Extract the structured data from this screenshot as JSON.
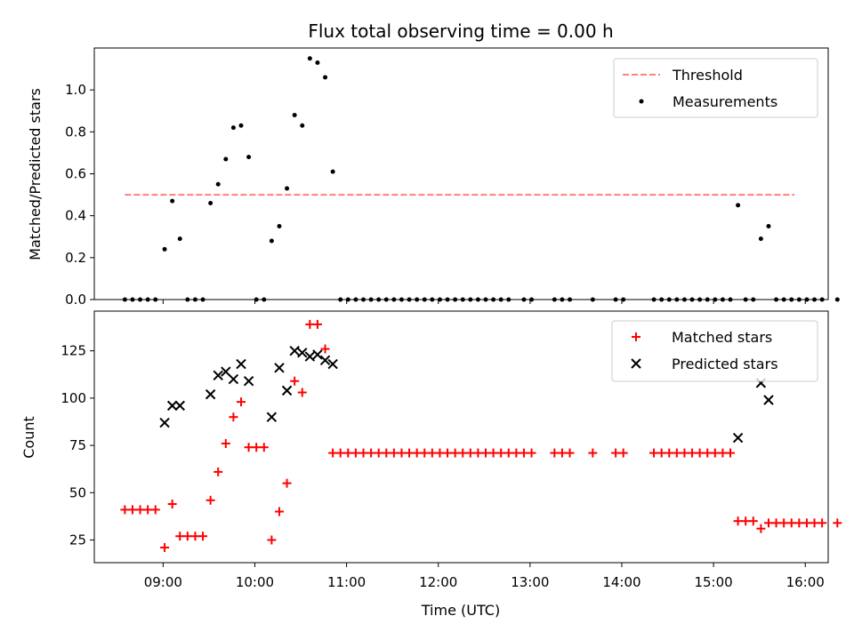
{
  "title": "Flux total observing time = 0.00 h",
  "chart_data": [
    {
      "type": "scatter",
      "ylabel": "Matched/Predicted stars",
      "xlim": [
        "08:15",
        "16:15"
      ],
      "ylim": [
        0,
        1.2
      ],
      "yticks": [
        0.0,
        0.2,
        0.4,
        0.6,
        0.8,
        1.0
      ],
      "ytick_labels": [
        "0.0",
        "0.2",
        "0.4",
        "0.6",
        "0.8",
        "1.0"
      ],
      "legend_position": "top-right",
      "threshold": {
        "name": "Threshold",
        "value": 0.5,
        "x_range": [
          "08:35",
          "15:53"
        ],
        "color": "#ff7f7f",
        "style": "dashed"
      },
      "series": [
        {
          "name": "Measurements",
          "color": "#000000",
          "marker": "dot",
          "points": [
            [
              "08:35",
              0
            ],
            [
              "08:40",
              0
            ],
            [
              "08:45",
              0
            ],
            [
              "08:50",
              0
            ],
            [
              "08:55",
              0
            ],
            [
              "09:01",
              0.24
            ],
            [
              "09:06",
              0.47
            ],
            [
              "09:11",
              0.29
            ],
            [
              "09:16",
              0
            ],
            [
              "09:21",
              0
            ],
            [
              "09:26",
              0
            ],
            [
              "09:31",
              0.46
            ],
            [
              "09:36",
              0.55
            ],
            [
              "09:41",
              0.67
            ],
            [
              "09:46",
              0.82
            ],
            [
              "09:51",
              0.83
            ],
            [
              "09:56",
              0.68
            ],
            [
              "10:01",
              0
            ],
            [
              "10:06",
              0
            ],
            [
              "10:11",
              0.28
            ],
            [
              "10:16",
              0.35
            ],
            [
              "10:21",
              0.53
            ],
            [
              "10:26",
              0.88
            ],
            [
              "10:31",
              0.83
            ],
            [
              "10:36",
              1.15
            ],
            [
              "10:41",
              1.13
            ],
            [
              "10:46",
              1.06
            ],
            [
              "10:51",
              0.61
            ],
            [
              "10:56",
              0
            ],
            [
              "11:01",
              0
            ],
            [
              "11:06",
              0
            ],
            [
              "11:11",
              0
            ],
            [
              "11:16",
              0
            ],
            [
              "11:21",
              0
            ],
            [
              "11:26",
              0
            ],
            [
              "11:31",
              0
            ],
            [
              "11:36",
              0
            ],
            [
              "11:41",
              0
            ],
            [
              "11:46",
              0
            ],
            [
              "11:51",
              0
            ],
            [
              "11:56",
              0
            ],
            [
              "12:01",
              0
            ],
            [
              "12:06",
              0
            ],
            [
              "12:11",
              0
            ],
            [
              "12:16",
              0
            ],
            [
              "12:21",
              0
            ],
            [
              "12:26",
              0
            ],
            [
              "12:31",
              0
            ],
            [
              "12:36",
              0
            ],
            [
              "12:41",
              0
            ],
            [
              "12:46",
              0
            ],
            [
              "12:56",
              0
            ],
            [
              "13:01",
              0
            ],
            [
              "13:16",
              0
            ],
            [
              "13:21",
              0
            ],
            [
              "13:26",
              0
            ],
            [
              "13:41",
              0
            ],
            [
              "13:56",
              0
            ],
            [
              "14:01",
              0
            ],
            [
              "14:21",
              0
            ],
            [
              "14:26",
              0
            ],
            [
              "14:31",
              0
            ],
            [
              "14:36",
              0
            ],
            [
              "14:41",
              0
            ],
            [
              "14:46",
              0
            ],
            [
              "14:51",
              0
            ],
            [
              "14:56",
              0
            ],
            [
              "15:01",
              0
            ],
            [
              "15:06",
              0
            ],
            [
              "15:11",
              0
            ],
            [
              "15:16",
              0.45
            ],
            [
              "15:21",
              0
            ],
            [
              "15:26",
              0
            ],
            [
              "15:31",
              0.29
            ],
            [
              "15:36",
              0.35
            ],
            [
              "15:41",
              0
            ],
            [
              "15:46",
              0
            ],
            [
              "15:51",
              0
            ],
            [
              "15:56",
              0
            ],
            [
              "16:01",
              0
            ],
            [
              "16:06",
              0
            ],
            [
              "16:11",
              0
            ],
            [
              "16:21",
              0
            ]
          ]
        }
      ]
    },
    {
      "type": "scatter",
      "xlabel": "Time (UTC)",
      "ylabel": "Count",
      "xlim": [
        "08:15",
        "16:15"
      ],
      "ylim": [
        13,
        146
      ],
      "xticks": [
        "09:00",
        "10:00",
        "11:00",
        "12:00",
        "13:00",
        "14:00",
        "15:00",
        "16:00"
      ],
      "yticks": [
        25,
        50,
        75,
        100,
        125
      ],
      "ytick_labels": [
        "25",
        "50",
        "75",
        "100",
        "125"
      ],
      "legend_position": "top-right",
      "series": [
        {
          "name": "Matched stars",
          "color": "#ff0000",
          "marker": "plus",
          "points": [
            [
              "08:35",
              41
            ],
            [
              "08:40",
              41
            ],
            [
              "08:45",
              41
            ],
            [
              "08:50",
              41
            ],
            [
              "08:55",
              41
            ],
            [
              "09:01",
              21
            ],
            [
              "09:06",
              44
            ],
            [
              "09:11",
              27
            ],
            [
              "09:16",
              27
            ],
            [
              "09:21",
              27
            ],
            [
              "09:26",
              27
            ],
            [
              "09:31",
              46
            ],
            [
              "09:36",
              61
            ],
            [
              "09:41",
              76
            ],
            [
              "09:46",
              90
            ],
            [
              "09:51",
              98
            ],
            [
              "09:56",
              74
            ],
            [
              "10:01",
              74
            ],
            [
              "10:06",
              74
            ],
            [
              "10:11",
              25
            ],
            [
              "10:16",
              40
            ],
            [
              "10:21",
              55
            ],
            [
              "10:26",
              109
            ],
            [
              "10:31",
              103
            ],
            [
              "10:36",
              139
            ],
            [
              "10:41",
              139
            ],
            [
              "10:46",
              126
            ],
            [
              "10:51",
              71
            ],
            [
              "10:56",
              71
            ],
            [
              "11:01",
              71
            ],
            [
              "11:06",
              71
            ],
            [
              "11:11",
              71
            ],
            [
              "11:16",
              71
            ],
            [
              "11:21",
              71
            ],
            [
              "11:26",
              71
            ],
            [
              "11:31",
              71
            ],
            [
              "11:36",
              71
            ],
            [
              "11:41",
              71
            ],
            [
              "11:46",
              71
            ],
            [
              "11:51",
              71
            ],
            [
              "11:56",
              71
            ],
            [
              "12:01",
              71
            ],
            [
              "12:06",
              71
            ],
            [
              "12:11",
              71
            ],
            [
              "12:16",
              71
            ],
            [
              "12:21",
              71
            ],
            [
              "12:26",
              71
            ],
            [
              "12:31",
              71
            ],
            [
              "12:36",
              71
            ],
            [
              "12:41",
              71
            ],
            [
              "12:46",
              71
            ],
            [
              "12:51",
              71
            ],
            [
              "12:56",
              71
            ],
            [
              "13:01",
              71
            ],
            [
              "13:16",
              71
            ],
            [
              "13:21",
              71
            ],
            [
              "13:26",
              71
            ],
            [
              "13:41",
              71
            ],
            [
              "13:56",
              71
            ],
            [
              "14:01",
              71
            ],
            [
              "14:21",
              71
            ],
            [
              "14:26",
              71
            ],
            [
              "14:31",
              71
            ],
            [
              "14:36",
              71
            ],
            [
              "14:41",
              71
            ],
            [
              "14:46",
              71
            ],
            [
              "14:51",
              71
            ],
            [
              "14:56",
              71
            ],
            [
              "15:01",
              71
            ],
            [
              "15:06",
              71
            ],
            [
              "15:11",
              71
            ],
            [
              "15:16",
              35
            ],
            [
              "15:21",
              35
            ],
            [
              "15:26",
              35
            ],
            [
              "15:31",
              31
            ],
            [
              "15:36",
              34
            ],
            [
              "15:41",
              34
            ],
            [
              "15:46",
              34
            ],
            [
              "15:51",
              34
            ],
            [
              "15:56",
              34
            ],
            [
              "16:01",
              34
            ],
            [
              "16:06",
              34
            ],
            [
              "16:11",
              34
            ],
            [
              "16:21",
              34
            ]
          ]
        },
        {
          "name": "Predicted stars",
          "color": "#000000",
          "marker": "x",
          "points": [
            [
              "09:01",
              87
            ],
            [
              "09:06",
              96
            ],
            [
              "09:11",
              96
            ],
            [
              "09:31",
              102
            ],
            [
              "09:36",
              112
            ],
            [
              "09:41",
              114
            ],
            [
              "09:46",
              110
            ],
            [
              "09:51",
              118
            ],
            [
              "09:56",
              109
            ],
            [
              "10:11",
              90
            ],
            [
              "10:16",
              116
            ],
            [
              "10:21",
              104
            ],
            [
              "10:26",
              125
            ],
            [
              "10:31",
              124
            ],
            [
              "10:36",
              122
            ],
            [
              "10:41",
              123
            ],
            [
              "10:46",
              120
            ],
            [
              "10:51",
              118
            ],
            [
              "15:16",
              79
            ],
            [
              "15:31",
              108
            ],
            [
              "15:36",
              99
            ]
          ]
        }
      ]
    }
  ]
}
